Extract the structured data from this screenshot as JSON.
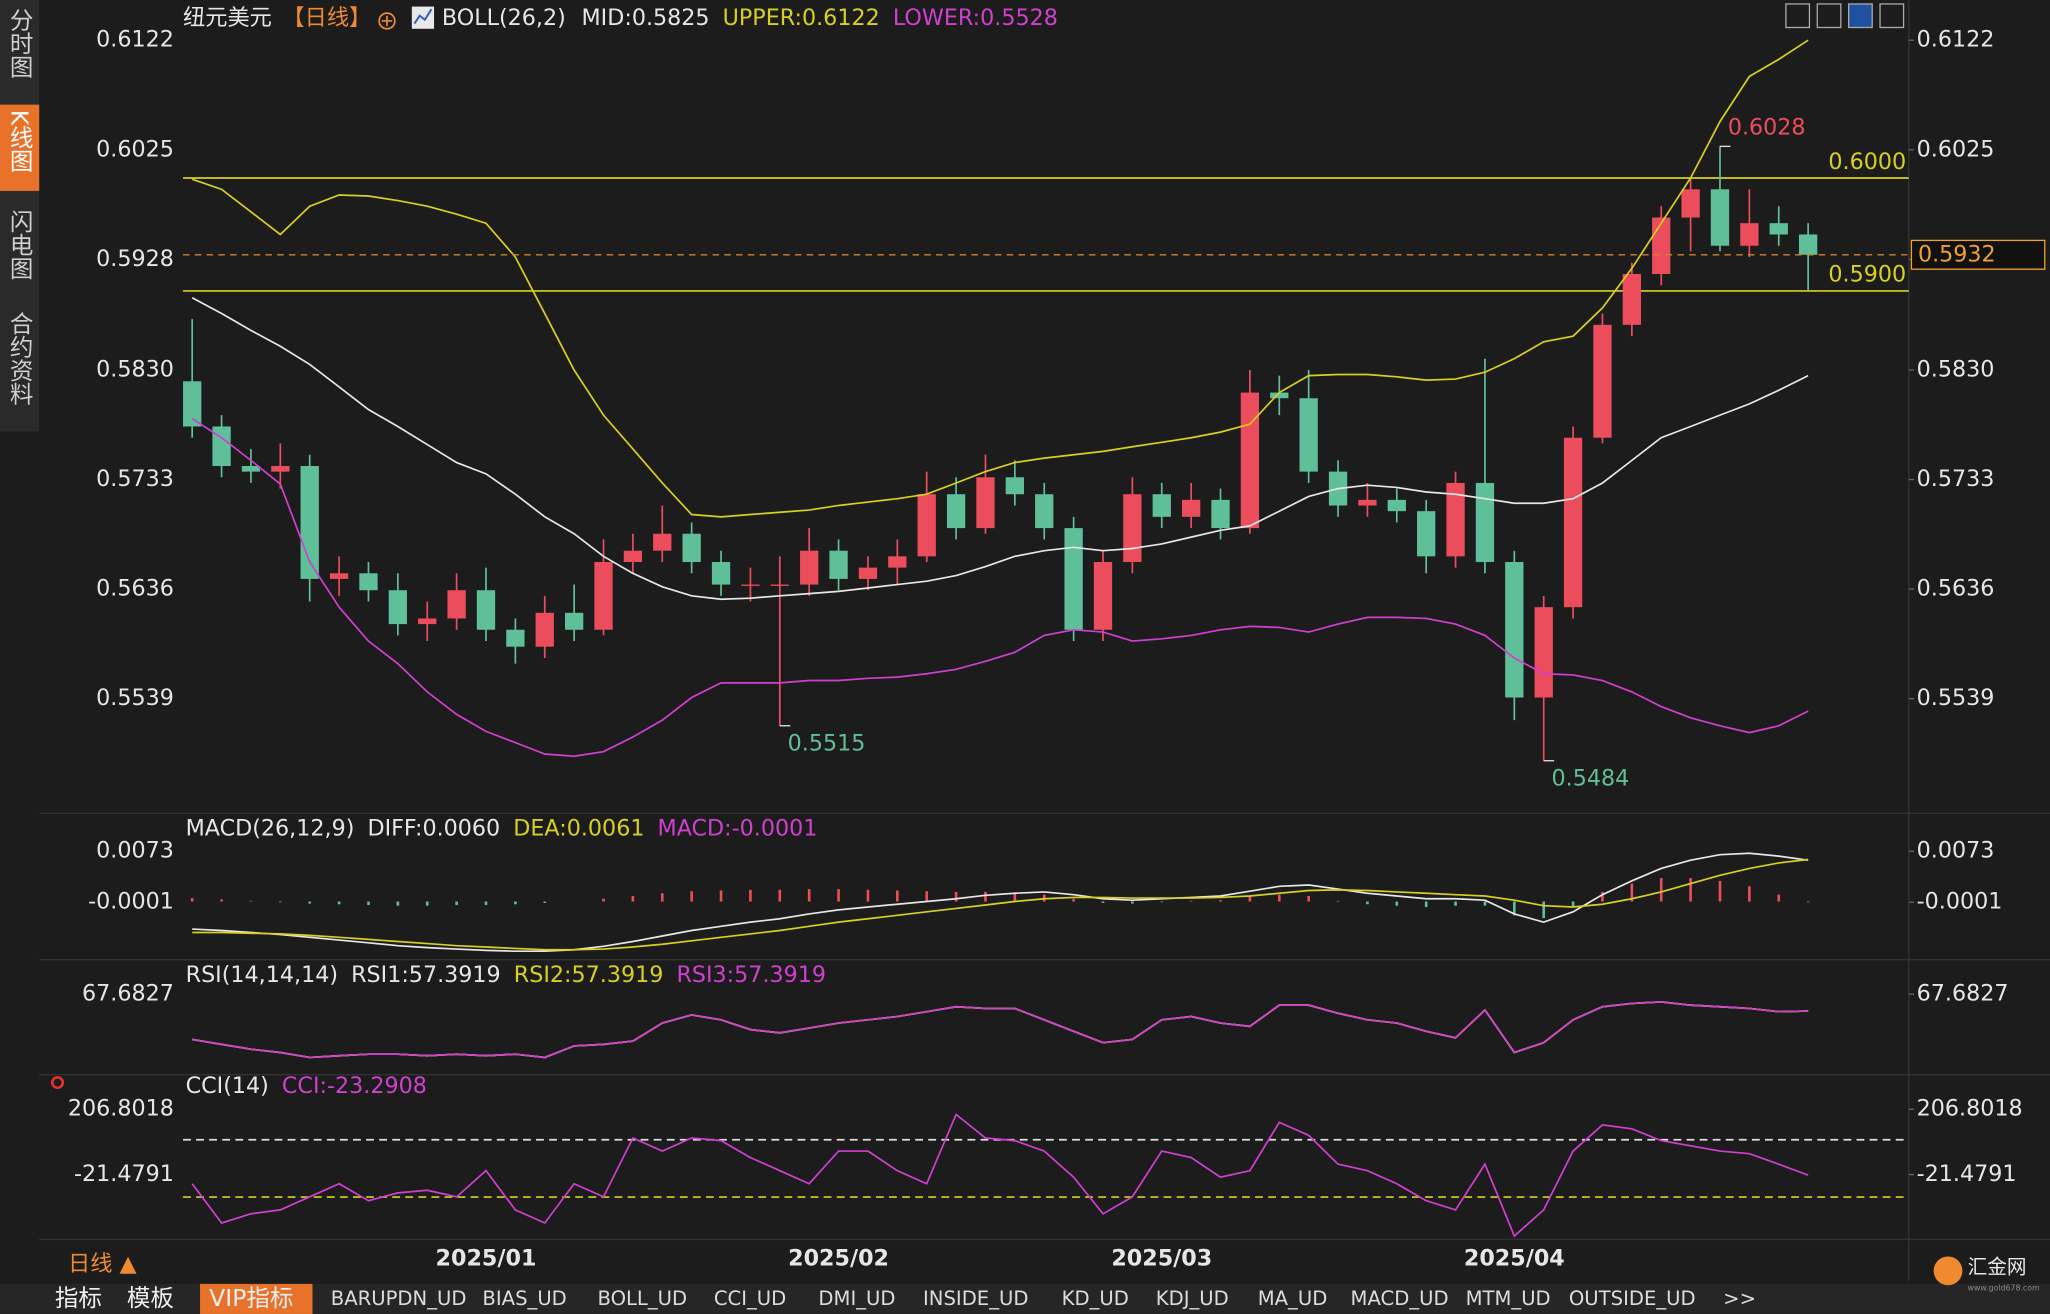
{
  "chart_data": [
    {
      "type": "candlestick",
      "title": "纽元美元",
      "period": "【日线】",
      "indicator": "BOLL(26,2)",
      "up_color": "#eb4d5c",
      "down_color": "#5fbf98",
      "categories": [
        null,
        null,
        null,
        null,
        null,
        null,
        null,
        null,
        null,
        null,
        "2025/01",
        null,
        null,
        null,
        null,
        null,
        null,
        null,
        null,
        null,
        null,
        null,
        "2025/02",
        null,
        null,
        null,
        null,
        null,
        null,
        null,
        null,
        null,
        null,
        "2025/03",
        null,
        null,
        null,
        null,
        null,
        null,
        null,
        null,
        null,
        null,
        null,
        "2025/04",
        null,
        null,
        null,
        null,
        null,
        null,
        null,
        null,
        null,
        null
      ],
      "values": [
        [
          0.582,
          0.5875,
          0.577,
          0.578
        ],
        [
          0.578,
          0.579,
          0.5735,
          0.5745
        ],
        [
          0.5745,
          0.576,
          0.573,
          0.574
        ],
        [
          0.574,
          0.5765,
          0.5725,
          0.5745
        ],
        [
          0.5745,
          0.5755,
          0.5625,
          0.5645
        ],
        [
          0.5645,
          0.5665,
          0.563,
          0.565
        ],
        [
          0.565,
          0.566,
          0.5625,
          0.5635
        ],
        [
          0.5635,
          0.565,
          0.5595,
          0.5605
        ],
        [
          0.5605,
          0.5625,
          0.559,
          0.561
        ],
        [
          0.561,
          0.565,
          0.56,
          0.5635
        ],
        [
          0.5635,
          0.5655,
          0.559,
          0.56
        ],
        [
          0.56,
          0.561,
          0.557,
          0.5585
        ],
        [
          0.5585,
          0.563,
          0.5575,
          0.5615
        ],
        [
          0.5615,
          0.564,
          0.559,
          0.56
        ],
        [
          0.56,
          0.568,
          0.5595,
          0.566
        ],
        [
          0.566,
          0.5685,
          0.565,
          0.567
        ],
        [
          0.567,
          0.571,
          0.566,
          0.5685
        ],
        [
          0.5685,
          0.5695,
          0.565,
          0.566
        ],
        [
          0.566,
          0.567,
          0.563,
          0.564
        ],
        [
          0.564,
          0.5655,
          0.5625,
          0.564
        ],
        [
          0.564,
          0.5665,
          0.5515,
          0.564
        ],
        [
          0.564,
          0.569,
          0.563,
          0.567
        ],
        [
          0.567,
          0.568,
          0.5635,
          0.5645
        ],
        [
          0.5645,
          0.5665,
          0.5635,
          0.5655
        ],
        [
          0.5655,
          0.568,
          0.564,
          0.5665
        ],
        [
          0.5665,
          0.574,
          0.566,
          0.572
        ],
        [
          0.572,
          0.5735,
          0.568,
          0.569
        ],
        [
          0.569,
          0.5755,
          0.5685,
          0.5735
        ],
        [
          0.5735,
          0.575,
          0.571,
          0.572
        ],
        [
          0.572,
          0.573,
          0.568,
          0.569
        ],
        [
          0.569,
          0.57,
          0.559,
          0.56
        ],
        [
          0.56,
          0.567,
          0.559,
          0.566
        ],
        [
          0.566,
          0.5735,
          0.565,
          0.572
        ],
        [
          0.572,
          0.573,
          0.569,
          0.57
        ],
        [
          0.57,
          0.573,
          0.569,
          0.5715
        ],
        [
          0.5715,
          0.5725,
          0.568,
          0.569
        ],
        [
          0.569,
          0.583,
          0.5685,
          0.581
        ],
        [
          0.581,
          0.5825,
          0.579,
          0.5805
        ],
        [
          0.5805,
          0.583,
          0.573,
          0.574
        ],
        [
          0.574,
          0.575,
          0.57,
          0.571
        ],
        [
          0.571,
          0.573,
          0.57,
          0.5715
        ],
        [
          0.5715,
          0.5725,
          0.5695,
          0.5705
        ],
        [
          0.5705,
          0.5715,
          0.565,
          0.5665
        ],
        [
          0.5665,
          0.574,
          0.5655,
          0.573
        ],
        [
          0.573,
          0.584,
          0.565,
          0.566
        ],
        [
          0.566,
          0.567,
          0.552,
          0.554
        ],
        [
          0.554,
          0.563,
          0.5484,
          0.562
        ],
        [
          0.562,
          0.578,
          0.561,
          0.577
        ],
        [
          0.577,
          0.588,
          0.5765,
          0.587
        ],
        [
          0.587,
          0.5925,
          0.586,
          0.5915
        ],
        [
          0.5915,
          0.5975,
          0.5905,
          0.5965
        ],
        [
          0.5965,
          0.6,
          0.5935,
          0.599
        ],
        [
          0.599,
          0.6028,
          0.5935,
          0.594
        ],
        [
          0.594,
          0.599,
          0.593,
          0.596
        ],
        [
          0.596,
          0.5975,
          0.594,
          0.595
        ],
        [
          0.595,
          0.596,
          0.59,
          0.5932
        ]
      ],
      "series": [
        {
          "label": "MID:0.5825",
          "color": "#e6e6e6",
          "values": [
            0.5894,
            0.588,
            0.5865,
            0.5851,
            0.5835,
            0.5815,
            0.5795,
            0.578,
            0.5764,
            0.5748,
            0.5738,
            0.572,
            0.57,
            0.5685,
            0.5665,
            0.565,
            0.5638,
            0.563,
            0.5627,
            0.5628,
            0.563,
            0.5632,
            0.5634,
            0.5637,
            0.564,
            0.5643,
            0.5648,
            0.5656,
            0.5665,
            0.567,
            0.5673,
            0.567,
            0.5672,
            0.5676,
            0.5682,
            0.5688,
            0.5692,
            0.5705,
            0.5718,
            0.5725,
            0.5728,
            0.5726,
            0.5722,
            0.572,
            0.5716,
            0.5712,
            0.5712,
            0.5716,
            0.573,
            0.575,
            0.577,
            0.578,
            0.579,
            0.58,
            0.5812,
            0.5825
          ]
        },
        {
          "label": "UPPER:0.6122",
          "color": "#d8d020",
          "values": [
            0.5999,
            0.599,
            0.597,
            0.595,
            0.5975,
            0.5985,
            0.5984,
            0.598,
            0.5975,
            0.5968,
            0.596,
            0.593,
            0.588,
            0.583,
            0.579,
            0.576,
            0.573,
            0.5702,
            0.57,
            0.5702,
            0.5704,
            0.5706,
            0.571,
            0.5713,
            0.5716,
            0.572,
            0.573,
            0.574,
            0.5748,
            0.5752,
            0.5755,
            0.5758,
            0.5762,
            0.5766,
            0.577,
            0.5775,
            0.5782,
            0.581,
            0.5825,
            0.5826,
            0.5826,
            0.5824,
            0.5821,
            0.5822,
            0.5828,
            0.584,
            0.5855,
            0.586,
            0.5885,
            0.592,
            0.596,
            0.6,
            0.605,
            0.609,
            0.6105,
            0.6122
          ]
        },
        {
          "label": "LOWER:0.5528",
          "color": "#d040d0",
          "values": [
            0.5787,
            0.577,
            0.575,
            0.5729,
            0.566,
            0.562,
            0.559,
            0.557,
            0.5545,
            0.5525,
            0.551,
            0.55,
            0.549,
            0.5488,
            0.5492,
            0.5505,
            0.552,
            0.554,
            0.5553,
            0.5553,
            0.5553,
            0.5555,
            0.5555,
            0.5557,
            0.5558,
            0.5561,
            0.5565,
            0.5572,
            0.558,
            0.5595,
            0.56,
            0.5598,
            0.559,
            0.5592,
            0.5595,
            0.56,
            0.5603,
            0.5602,
            0.5598,
            0.5605,
            0.5611,
            0.5611,
            0.561,
            0.5605,
            0.5595,
            0.5575,
            0.5561,
            0.556,
            0.5555,
            0.5545,
            0.5532,
            0.5522,
            0.5515,
            0.5509,
            0.5515,
            0.5528
          ]
        }
      ],
      "levels": [
        {
          "value": 0.6,
          "label": "0.6000",
          "color": "#d8d020"
        },
        {
          "value": 0.59,
          "label": "0.5900",
          "color": "#d8d020"
        }
      ],
      "ylim": [
        0.5463,
        0.6146
      ],
      "yticks": [
        0.6122,
        0.6025,
        0.5928,
        {
          "value": 0.583,
          "label": "0.5830"
        },
        0.5733,
        0.5636,
        0.5539
      ]
    },
    {
      "type": "macd",
      "title": "MACD(26,12,9)",
      "series": [
        {
          "label": "DIFF:0.0060",
          "color": "#e6e6e6",
          "values": [
            -0.004,
            -0.0042,
            -0.0045,
            -0.0048,
            -0.0052,
            -0.0056,
            -0.006,
            -0.0064,
            -0.0067,
            -0.0069,
            -0.0071,
            -0.0072,
            -0.0072,
            -0.007,
            -0.0065,
            -0.0058,
            -0.005,
            -0.0042,
            -0.0036,
            -0.003,
            -0.0025,
            -0.0018,
            -0.0012,
            -0.0008,
            -0.0004,
            0.0,
            0.0004,
            0.0009,
            0.0012,
            0.0014,
            0.001,
            0.0004,
            0.0002,
            0.0004,
            0.0006,
            0.0008,
            0.0015,
            0.0022,
            0.0024,
            0.0018,
            0.0012,
            0.0008,
            0.0004,
            0.0004,
            0.0002,
            -0.0018,
            -0.003,
            -0.0015,
            0.001,
            0.003,
            0.0048,
            0.006,
            0.0068,
            0.007,
            0.0066,
            0.006
          ]
        },
        {
          "label": "DEA:0.0061",
          "color": "#d8d020",
          "values": [
            -0.0045,
            -0.0045,
            -0.0046,
            -0.0047,
            -0.0049,
            -0.0052,
            -0.0055,
            -0.0058,
            -0.0061,
            -0.0064,
            -0.0066,
            -0.0068,
            -0.007,
            -0.007,
            -0.0069,
            -0.0066,
            -0.0062,
            -0.0057,
            -0.0052,
            -0.0047,
            -0.0042,
            -0.0036,
            -0.003,
            -0.0025,
            -0.002,
            -0.0015,
            -0.001,
            -0.0005,
            0.0,
            0.0004,
            0.0006,
            0.0006,
            0.0005,
            0.0005,
            0.0005,
            0.0006,
            0.0008,
            0.0012,
            0.0016,
            0.0017,
            0.0016,
            0.0014,
            0.0012,
            0.001,
            0.0008,
            0.0002,
            -0.0006,
            -0.0008,
            -0.0004,
            0.0004,
            0.0014,
            0.0026,
            0.0038,
            0.0048,
            0.0056,
            0.0061
          ]
        }
      ],
      "histogram": {
        "label": "MACD:-0.0001",
        "color": "#d040d0",
        "up_color": "#eb4d5c",
        "down_color": "#5fbf98",
        "values": [
          0.0005,
          0.0003,
          0.0001,
          -0.0001,
          -0.0003,
          -0.0004,
          -0.0005,
          -0.0006,
          -0.0006,
          -0.0005,
          -0.0005,
          -0.0004,
          -0.0002,
          0.0,
          0.0004,
          0.0008,
          0.0012,
          0.0015,
          0.0016,
          0.0017,
          0.0017,
          0.0018,
          0.0018,
          0.0017,
          0.0016,
          0.0015,
          0.0014,
          0.0014,
          0.0012,
          0.001,
          0.0004,
          -0.0002,
          -0.0003,
          -0.0001,
          0.0001,
          0.0002,
          0.0007,
          0.001,
          0.0008,
          0.0001,
          -0.0004,
          -0.0006,
          -0.0008,
          -0.0006,
          -0.0006,
          -0.002,
          -0.0024,
          -0.0007,
          0.0014,
          0.0026,
          0.0034,
          0.0034,
          0.003,
          0.0022,
          0.001,
          -0.0001
        ]
      },
      "ylim": [
        -0.0073,
        0.0094
      ],
      "yticks": [
        0.0073,
        -0.0001
      ]
    },
    {
      "type": "line",
      "title": "RSI(14,14,14)",
      "series": [
        {
          "label": "RSI1:57.3919",
          "color": "#e6e6e6",
          "values": [
            40,
            37,
            34,
            32,
            29,
            30,
            31,
            31,
            30,
            31,
            30,
            31,
            29,
            36,
            37,
            39,
            50,
            55,
            52,
            46,
            44,
            47,
            50,
            52,
            54,
            57,
            60,
            59,
            59,
            52,
            45,
            38,
            40,
            52,
            54,
            50,
            48,
            61,
            61,
            56,
            52,
            50,
            45,
            41,
            58,
            32,
            38,
            52,
            60,
            62,
            63,
            61,
            60,
            59,
            57,
            57.3919
          ]
        },
        {
          "label": "RSI2:57.3919",
          "color": "#d8d020",
          "values": [
            40,
            37,
            34,
            32,
            29,
            30,
            31,
            31,
            30,
            31,
            30,
            31,
            29,
            36,
            37,
            39,
            50,
            55,
            52,
            46,
            44,
            47,
            50,
            52,
            54,
            57,
            60,
            59,
            59,
            52,
            45,
            38,
            40,
            52,
            54,
            50,
            48,
            61,
            61,
            56,
            52,
            50,
            45,
            41,
            58,
            32,
            38,
            52,
            60,
            62,
            63,
            61,
            60,
            59,
            57,
            57.3919
          ]
        },
        {
          "label": "RSI3:57.3919",
          "color": "#d040d0",
          "values": [
            40,
            37,
            34,
            32,
            29,
            30,
            31,
            31,
            30,
            31,
            30,
            31,
            29,
            36,
            37,
            39,
            50,
            55,
            52,
            46,
            44,
            47,
            50,
            52,
            54,
            57,
            60,
            59,
            59,
            52,
            45,
            38,
            40,
            52,
            54,
            50,
            48,
            61,
            61,
            56,
            52,
            50,
            45,
            41,
            58,
            32,
            38,
            52,
            60,
            62,
            63,
            61,
            60,
            59,
            57,
            57.3919
          ]
        }
      ],
      "ylim": [
        20,
        80
      ],
      "yticks": [
        67.6827
      ]
    },
    {
      "type": "line",
      "title": "CCI(14)",
      "series": [
        {
          "label": "CCI:-23.2908",
          "color": "#d040d0",
          "values": [
            -53.5,
            -190.4,
            -158.5,
            -144.8,
            -99.1,
            -53.5,
            -112.8,
            -85.4,
            -76.3,
            -99.1,
            -7.8,
            -144.8,
            -190.4,
            -53.5,
            -99.1,
            106.3,
            60.7,
            106.3,
            97.2,
            37.9,
            -7.8,
            -53.5,
            60.7,
            60.7,
            -7.8,
            -53.5,
            188.5,
            106.3,
            97.2,
            60.7,
            -30.6,
            -158.5,
            -99.1,
            60.7,
            37.9,
            -30.6,
            -7.8,
            161.1,
            115.5,
            15.0,
            -7.8,
            -53.5,
            -112.8,
            -144.8,
            15.0,
            -236.1,
            -144.8,
            60.7,
            152.0,
            138.3,
            97.2,
            79.0,
            60.7,
            51.6,
            15.0,
            -23.2908
          ]
        }
      ],
      "levels": [
        {
          "value": 100,
          "color": "#dddddd"
        },
        {
          "value": -100,
          "color": "#d8d020"
        }
      ],
      "ylim": [
        -280,
        245
      ],
      "yticks": [
        206.8018,
        -21.4791
      ]
    }
  ],
  "sidebar": [
    "分时图",
    "K线图",
    "闪电图",
    "合约资料"
  ],
  "period_label": "日线 ▲",
  "toolbar": [
    "指标",
    "模板",
    "VIP指标",
    "BARUPDN_UD",
    "BIAS_UD",
    "BOLL_UD",
    "CCI_UD",
    "DMI_UD",
    "INSIDE_UD",
    "KD_UD",
    "KDJ_UD",
    "MA_UD",
    "MACD_UD",
    "MTM_UD",
    "OUTSIDE_UD",
    ">>"
  ],
  "logo": {
    "name": "汇金网",
    "url": "www.gold678.com"
  }
}
